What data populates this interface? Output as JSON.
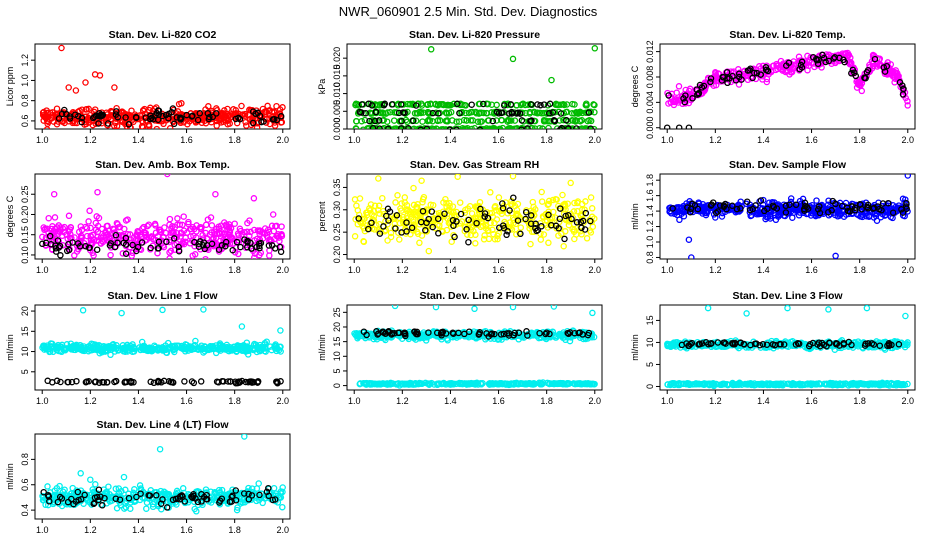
{
  "figure": {
    "title": "NWR_060901  2.5 Min. Std. Dev. Diagnostics"
  },
  "chart_data": [
    {
      "type": "scatter",
      "title": "Stan. Dev. Li-820 CO2",
      "ylabel": "Licor ppm",
      "xlim": [
        0.97,
        2.03
      ],
      "ylim": [
        0.52,
        1.36
      ],
      "xticks": [
        "1.0",
        "1.2",
        "1.4",
        "1.6",
        "1.8",
        "2.0"
      ],
      "yticks": [
        0.6,
        0.8,
        1.0,
        1.2
      ],
      "ytick_labels": [
        "0.6",
        "0.8",
        "1.0",
        "1.2"
      ],
      "series": [
        {
          "name": "main",
          "color": "#ff0000",
          "n": 420,
          "base": 0.64,
          "spread": 0.09,
          "trend": [],
          "outliers": [
            [
              1.08,
              1.32
            ],
            [
              1.11,
              0.93
            ],
            [
              1.18,
              0.98
            ],
            [
              1.22,
              1.06
            ],
            [
              1.24,
              1.05
            ],
            [
              1.3,
              0.93
            ],
            [
              1.14,
              0.9
            ]
          ]
        },
        {
          "name": "black",
          "color": "#000000",
          "n": 75,
          "base": 0.64,
          "spread": 0.07,
          "trend": [],
          "outliers": []
        }
      ]
    },
    {
      "type": "scatter",
      "title": "Stan. Dev. Li-820 Pressure",
      "ylabel": "kPa",
      "xlim": [
        0.97,
        2.03
      ],
      "ylim": [
        0.0,
        0.024
      ],
      "xticks": [
        "1.0",
        "1.2",
        "1.4",
        "1.6",
        "1.8",
        "2.0"
      ],
      "yticks": [
        0.0,
        0.005,
        0.01,
        0.015,
        0.02
      ],
      "ytick_labels": [
        "0.000",
        "0.005",
        "0.010",
        "0.015",
        "0.020"
      ],
      "series": [
        {
          "name": "main",
          "color": "#00bb00",
          "n": 420,
          "base": 0.0035,
          "spread": 0.0035,
          "trend": [],
          "levels": [
            0.0,
            0.0023,
            0.0046,
            0.0069
          ],
          "outliers": [
            [
              1.32,
              0.0225
            ],
            [
              1.66,
              0.0198
            ],
            [
              1.82,
              0.0138
            ],
            [
              2.0,
              0.0228
            ]
          ]
        },
        {
          "name": "black",
          "color": "#000000",
          "n": 75,
          "base": 0.0035,
          "spread": 0.0035,
          "trend": [],
          "levels": [
            0.0,
            0.0023,
            0.0046,
            0.0069
          ],
          "outliers": []
        }
      ]
    },
    {
      "type": "scatter",
      "title": "Stan. Dev. Li-820 Temp.",
      "ylabel": "degrees C",
      "xlim": [
        0.97,
        2.03
      ],
      "ylim": [
        -0.0002,
        0.0132
      ],
      "xticks": [
        "1.0",
        "1.2",
        "1.4",
        "1.6",
        "1.8",
        "2.0"
      ],
      "yticks": [
        0.0,
        0.004,
        0.008,
        0.012
      ],
      "ytick_labels": [
        "0.000",
        "0.004",
        "0.008",
        "0.012"
      ],
      "series": [
        {
          "name": "main",
          "color": "#ff00ff",
          "n": 420,
          "base": 0,
          "spread": 0.0011,
          "trend": [
            [
              1.0,
              0.0045
            ],
            [
              1.1,
              0.0048
            ],
            [
              1.2,
              0.0078
            ],
            [
              1.35,
              0.0085
            ],
            [
              1.5,
              0.0095
            ],
            [
              1.65,
              0.0108
            ],
            [
              1.75,
              0.0112
            ],
            [
              1.8,
              0.0065
            ],
            [
              1.86,
              0.0105
            ],
            [
              1.95,
              0.0085
            ],
            [
              2.0,
              0.0045
            ]
          ],
          "outliers": []
        },
        {
          "name": "black",
          "color": "#000000",
          "n": 75,
          "base": 0,
          "spread": 0.0009,
          "trend": [
            [
              1.0,
              0.0045
            ],
            [
              1.1,
              0.0048
            ],
            [
              1.2,
              0.0078
            ],
            [
              1.35,
              0.0085
            ],
            [
              1.5,
              0.0095
            ],
            [
              1.65,
              0.0108
            ],
            [
              1.75,
              0.0112
            ],
            [
              1.8,
              0.0065
            ],
            [
              1.86,
              0.0105
            ],
            [
              1.95,
              0.0085
            ],
            [
              2.0,
              0.0045
            ]
          ],
          "outliers": [
            [
              1.0,
              0.0
            ],
            [
              1.05,
              0.0
            ],
            [
              1.09,
              0.0
            ]
          ]
        }
      ]
    },
    {
      "type": "scatter",
      "title": "Stan. Dev. Amb. Box Temp.",
      "ylabel": "degrees C",
      "xlim": [
        0.97,
        2.03
      ],
      "ylim": [
        0.09,
        0.3
      ],
      "xticks": [
        "1.0",
        "1.2",
        "1.4",
        "1.6",
        "1.8",
        "2.0"
      ],
      "yticks": [
        0.1,
        0.15,
        0.2,
        0.25
      ],
      "ytick_labels": [
        "0.10",
        "0.15",
        "0.20",
        "0.25"
      ],
      "series": [
        {
          "name": "main",
          "color": "#ff00ff",
          "n": 420,
          "base": 0.145,
          "spread": 0.04,
          "trend": [],
          "outliers": [
            [
              1.05,
              0.25
            ],
            [
              1.23,
              0.255
            ],
            [
              1.52,
              0.3
            ],
            [
              1.72,
              0.25
            ],
            [
              1.88,
              0.24
            ],
            [
              1.96,
              0.2
            ]
          ]
        },
        {
          "name": "black",
          "color": "#000000",
          "n": 75,
          "base": 0.125,
          "spread": 0.018,
          "trend": [],
          "outliers": []
        }
      ]
    },
    {
      "type": "scatter",
      "title": "Stan. Dev. Gas Stream RH",
      "ylabel": "percent",
      "xlim": [
        0.97,
        2.03
      ],
      "ylim": [
        0.19,
        0.38
      ],
      "xticks": [
        "1.0",
        "1.2",
        "1.4",
        "1.6",
        "1.8",
        "2.0"
      ],
      "yticks": [
        0.2,
        0.25,
        0.3,
        0.35
      ],
      "ytick_labels": [
        "0.20",
        "0.25",
        "0.30",
        "0.35"
      ],
      "series": [
        {
          "name": "main",
          "color": "#ffff00",
          "n": 420,
          "base": 0.28,
          "spread": 0.05,
          "trend": [],
          "outliers": [
            [
              1.1,
              0.37
            ],
            [
              1.28,
              0.365
            ],
            [
              1.66,
              0.375
            ],
            [
              1.9,
              0.36
            ]
          ]
        },
        {
          "name": "black",
          "color": "#000000",
          "n": 75,
          "base": 0.27,
          "spread": 0.04,
          "trend": [],
          "outliers": []
        }
      ]
    },
    {
      "type": "scatter",
      "title": "Stan. Dev. Sample Flow",
      "ylabel": "ml/min",
      "xlim": [
        0.97,
        2.03
      ],
      "ylim": [
        0.78,
        1.88
      ],
      "xticks": [
        "1.0",
        "1.2",
        "1.4",
        "1.6",
        "1.8",
        "2.0"
      ],
      "yticks": [
        0.8,
        1.0,
        1.2,
        1.4,
        1.6,
        1.8
      ],
      "ytick_labels": [
        "0.8",
        "1.0",
        "1.2",
        "1.4",
        "1.6",
        "1.8"
      ],
      "series": [
        {
          "name": "main",
          "color": "#0000ff",
          "n": 420,
          "base": 1.42,
          "spread": 0.1,
          "trend": [],
          "outliers": [
            [
              1.09,
              1.03
            ],
            [
              1.1,
              0.8
            ],
            [
              1.7,
              0.82
            ],
            [
              2.0,
              1.86
            ]
          ]
        },
        {
          "name": "black",
          "color": "#000000",
          "n": 75,
          "base": 1.45,
          "spread": 0.09,
          "trend": [],
          "outliers": []
        }
      ]
    },
    {
      "type": "scatter",
      "title": "Stan. Dev. Line 1 Flow",
      "ylabel": "ml/min",
      "xlim": [
        0.97,
        2.03
      ],
      "ylim": [
        0.5,
        21.5
      ],
      "xticks": [
        "1.0",
        "1.2",
        "1.4",
        "1.6",
        "1.8",
        "2.0"
      ],
      "yticks": [
        5,
        10,
        15,
        20
      ],
      "ytick_labels": [
        "5",
        "10",
        "15",
        "20"
      ],
      "series": [
        {
          "name": "main",
          "color": "#00eeee",
          "n": 420,
          "base": 10.8,
          "spread": 1.0,
          "trend": [],
          "outliers": [
            [
              1.17,
              20.2
            ],
            [
              1.33,
              19.5
            ],
            [
              1.5,
              20.3
            ],
            [
              1.67,
              20.4
            ],
            [
              1.83,
              16.2
            ],
            [
              1.99,
              15.2
            ]
          ]
        },
        {
          "name": "black",
          "color": "#000000",
          "n": 75,
          "base": 2.5,
          "spread": 0.25,
          "trend": [],
          "outliers": []
        }
      ]
    },
    {
      "type": "scatter",
      "title": "Stan. Dev. Line 2 Flow",
      "ylabel": "ml/min",
      "xlim": [
        0.97,
        2.03
      ],
      "ylim": [
        -1.5,
        27.5
      ],
      "xticks": [
        "1.0",
        "1.2",
        "1.4",
        "1.6",
        "1.8",
        "2.0"
      ],
      "yticks": [
        0,
        5,
        10,
        15,
        20,
        25
      ],
      "ytick_labels": [
        "0",
        "5",
        "10",
        "15",
        "20",
        "25"
      ],
      "series": [
        {
          "name": "main",
          "color": "#00eeee",
          "n": 420,
          "base": 17.2,
          "spread": 1.3,
          "trend": [],
          "outliers": [
            [
              1.17,
              27.2
            ],
            [
              1.34,
              26.8
            ],
            [
              1.5,
              26.2
            ],
            [
              1.66,
              26.8
            ],
            [
              1.83,
              27.0
            ],
            [
              1.99,
              24.8
            ]
          ]
        },
        {
          "name": "cyan-low",
          "color": "#00eeee",
          "n": 300,
          "base": 0.6,
          "spread": 0.3,
          "trend": [],
          "outliers": []
        },
        {
          "name": "black",
          "color": "#000000",
          "n": 75,
          "base": 17.8,
          "spread": 0.8,
          "trend": [],
          "outliers": []
        }
      ]
    },
    {
      "type": "scatter",
      "title": "Stan. Dev. Line 3 Flow",
      "ylabel": "ml/min",
      "xlim": [
        0.97,
        2.03
      ],
      "ylim": [
        -0.8,
        18.5
      ],
      "xticks": [
        "1.0",
        "1.2",
        "1.4",
        "1.6",
        "1.8",
        "2.0"
      ],
      "yticks": [
        0,
        5,
        10,
        15
      ],
      "ytick_labels": [
        "0",
        "5",
        "10",
        "15"
      ],
      "series": [
        {
          "name": "main",
          "color": "#00eeee",
          "n": 420,
          "base": 9.5,
          "spread": 0.7,
          "trend": [],
          "outliers": [
            [
              1.17,
              17.8
            ],
            [
              1.33,
              16.6
            ],
            [
              1.5,
              17.8
            ],
            [
              1.67,
              17.5
            ],
            [
              1.83,
              17.8
            ],
            [
              1.99,
              16.0
            ]
          ]
        },
        {
          "name": "cyan-low",
          "color": "#00eeee",
          "n": 300,
          "base": 0.5,
          "spread": 0.25,
          "trend": [],
          "outliers": []
        },
        {
          "name": "black",
          "color": "#000000",
          "n": 75,
          "base": 9.6,
          "spread": 0.45,
          "trend": [],
          "outliers": []
        }
      ]
    },
    {
      "type": "scatter",
      "title": "Stan. Dev. Line 4 (LT) Flow",
      "ylabel": "ml/min",
      "xlim": [
        0.97,
        2.03
      ],
      "ylim": [
        0.33,
        1.0
      ],
      "xticks": [
        "1.0",
        "1.2",
        "1.4",
        "1.6",
        "1.8",
        "2.0"
      ],
      "yticks": [
        0.4,
        0.6,
        0.8
      ],
      "ytick_labels": [
        "0.4",
        "0.6",
        "0.8"
      ],
      "series": [
        {
          "name": "main",
          "color": "#00eeee",
          "n": 420,
          "base": 0.5,
          "spread": 0.07,
          "trend": [],
          "outliers": [
            [
              1.16,
              0.69
            ],
            [
              1.2,
              0.64
            ],
            [
              1.34,
              0.66
            ],
            [
              1.49,
              0.88
            ],
            [
              1.84,
              0.98
            ],
            [
              1.9,
              0.61
            ]
          ]
        },
        {
          "name": "black",
          "color": "#000000",
          "n": 75,
          "base": 0.5,
          "spread": 0.06,
          "trend": [],
          "outliers": []
        }
      ]
    }
  ]
}
